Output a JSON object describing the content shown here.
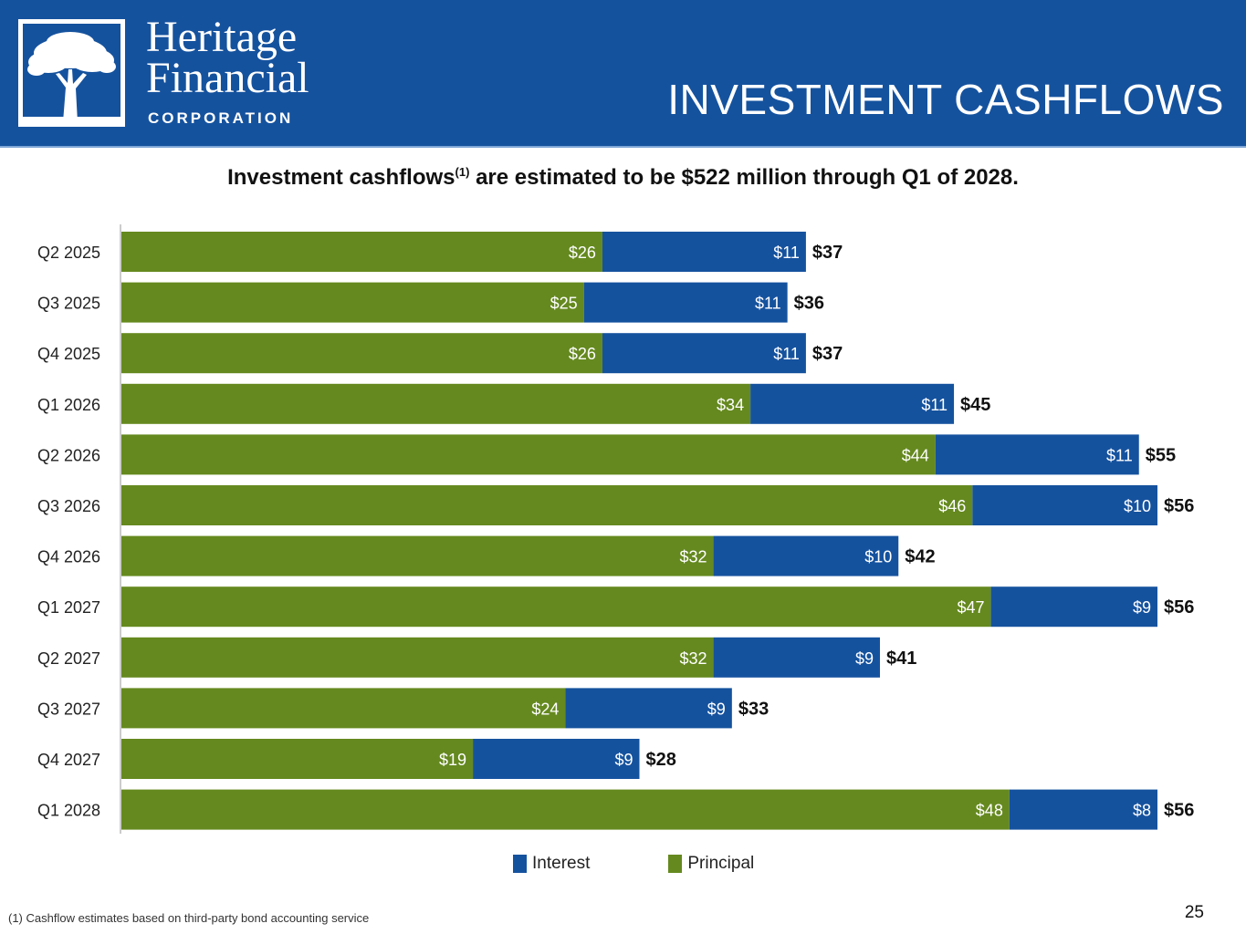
{
  "header": {
    "logo": {
      "line1": "Heritage",
      "line2": "Financial",
      "line3": "CORPORATION"
    },
    "title": "INVESTMENT CASHFLOWS",
    "background_color": "#15529e"
  },
  "subtitle": {
    "before": "Investment cashflows",
    "sup": "(1)",
    "after": " are estimated to be $522 million through Q1 of 2028."
  },
  "chart_data": {
    "type": "bar",
    "orientation": "horizontal",
    "stacked": true,
    "categories": [
      "Q2 2025",
      "Q3 2025",
      "Q4 2025",
      "Q1 2026",
      "Q2 2026",
      "Q3 2026",
      "Q4 2026",
      "Q1 2027",
      "Q2 2027",
      "Q3 2027",
      "Q4 2027",
      "Q1 2028"
    ],
    "series": [
      {
        "name": "Principal",
        "color": "#65891f",
        "values": [
          26,
          25,
          26,
          34,
          44,
          46,
          32,
          47,
          32,
          24,
          19,
          48
        ]
      },
      {
        "name": "Interest",
        "color": "#15529e",
        "values": [
          11,
          11,
          11,
          11,
          11,
          10,
          10,
          9,
          9,
          9,
          9,
          8
        ]
      }
    ],
    "totals": [
      37,
      36,
      37,
      45,
      55,
      56,
      42,
      56,
      41,
      33,
      28,
      56
    ],
    "value_prefix": "$",
    "xlim": [
      0,
      56
    ],
    "grid": false,
    "legend_position": "bottom"
  },
  "legend": [
    {
      "label": "Interest",
      "color": "#15529e"
    },
    {
      "label": "Principal",
      "color": "#65891f"
    }
  ],
  "footnote": "(1) Cashflow estimates based on third-party bond accounting service",
  "page_number": "25"
}
